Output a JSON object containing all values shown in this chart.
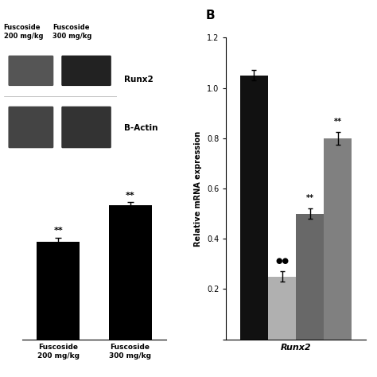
{
  "panel_B_label": "B",
  "panel_A_bar_values": [
    0.68,
    0.93
  ],
  "panel_A_bar_errors": [
    0.025,
    0.022
  ],
  "panel_A_bar_colors": [
    "#000000",
    "#000000"
  ],
  "panel_A_xlabels": [
    "Fuscoside\n200 mg/kg",
    "Fuscoside\n300 mg/kg"
  ],
  "panel_A_annotations": [
    "**",
    "**"
  ],
  "panel_B_bar_values": [
    1.05,
    0.25,
    0.5,
    0.8
  ],
  "panel_B_bar_errors": [
    0.02,
    0.02,
    0.02,
    0.025
  ],
  "panel_B_bar_colors": [
    "#111111",
    "#b0b0b0",
    "#686868",
    "#808080"
  ],
  "panel_B_xlabel": "Runx2",
  "panel_B_ylabel": "Relative mRNA expression",
  "panel_B_ylim": [
    0,
    1.2
  ],
  "panel_B_yticks": [
    0,
    0.2,
    0.4,
    0.6,
    0.8,
    1.0,
    1.2
  ],
  "panel_B_annotations": [
    "",
    "●●",
    "**",
    "**"
  ],
  "background_color": "#ffffff",
  "blot_label_runx2": "Runx2",
  "blot_label_actin": "B-Actin",
  "blot_header1": "Fuscoside\n200 mg/kg",
  "blot_header2": "Fuscoside\n300 mg/kg"
}
